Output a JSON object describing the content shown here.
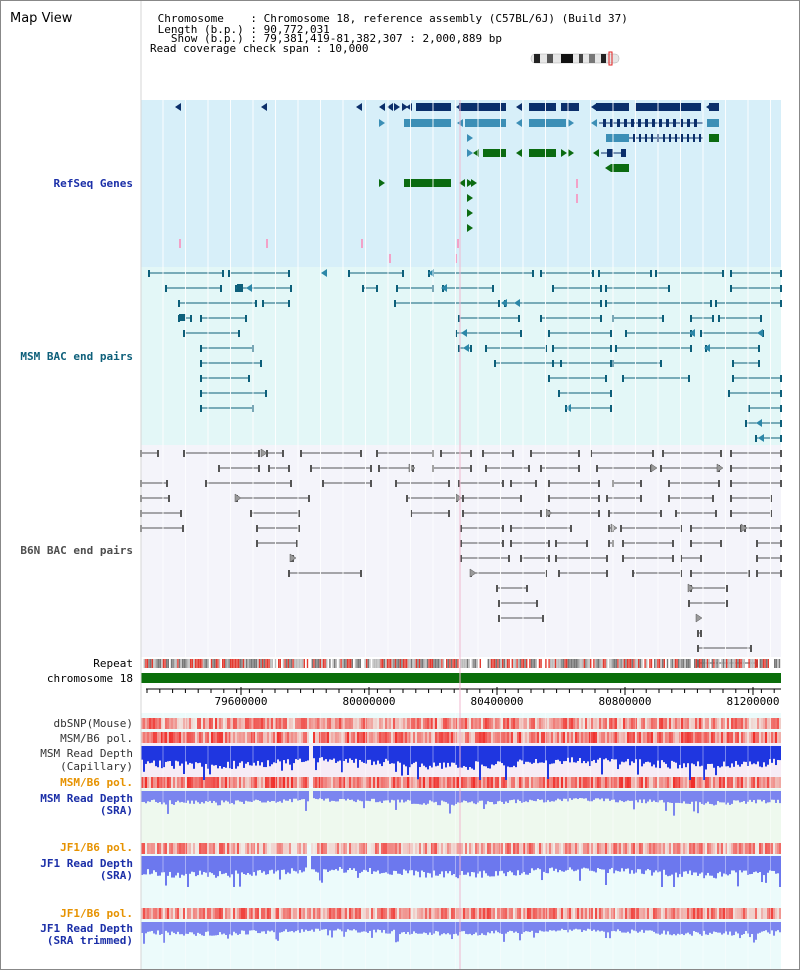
{
  "title": "Map View",
  "info": {
    "lines": [
      " Chromosome    : Chromosome 18, reference assembly (C57BL/6J) (Build 37)",
      " Length (b.p.) : 90,772,031",
      "   Show (b.p.) : 79,381,419-81,382,307 : 2,000,889 bp",
      "Read coverage check span : 10,000"
    ]
  },
  "tracks": {
    "refseq": "RefSeq Genes",
    "msm_bac": "MSM BAC end pairs",
    "b6n_bac": "B6N BAC end pairs",
    "repeat": "Repeat",
    "chromosome": "chromosome 18",
    "dbsnp": "dbSNP(Mouse)",
    "msm_b6_pol_1": "MSM/B6 pol.",
    "msm_read_depth_cap_1": "MSM Read Depth",
    "msm_read_depth_cap_2": "(Capillary)",
    "msm_b6_pol_2": "MSM/B6 pol.",
    "msm_read_depth_sra_1": "MSM Read Depth",
    "msm_read_depth_sra_2": "(SRA)",
    "jf1_b6_pol_1": "JF1/B6 pol.",
    "jf1_read_depth_sra_1": "JF1 Read Depth",
    "jf1_read_depth_sra_2": "(SRA)",
    "jf1_b6_pol_2": "JF1/B6 pol.",
    "jf1_read_depth_trim_1": "JF1 Read Depth",
    "jf1_read_depth_trim_2": "(SRA trimmed)"
  },
  "axis": {
    "ticks": [
      "79600000",
      "80000000",
      "80400000",
      "80800000",
      "81200000"
    ]
  },
  "colors": {
    "refseq_bg": "#d7eff9",
    "msm_bg": "#e3f7f7",
    "b6n_bg": "#f4f4fa",
    "lower_bg": "#ecfbfb",
    "gene_dark": "#0b2f6b",
    "gene_light": "#3c8fb6",
    "gene_green": "#0b6b11",
    "msm_pair": "#0d5f7a",
    "b6n_pair": "#555555",
    "chromosome": "#0a6e0a",
    "depth_blue": "#1f36e0",
    "depth_light": "#7b85ef",
    "pol_red": "#e8413a"
  }
}
